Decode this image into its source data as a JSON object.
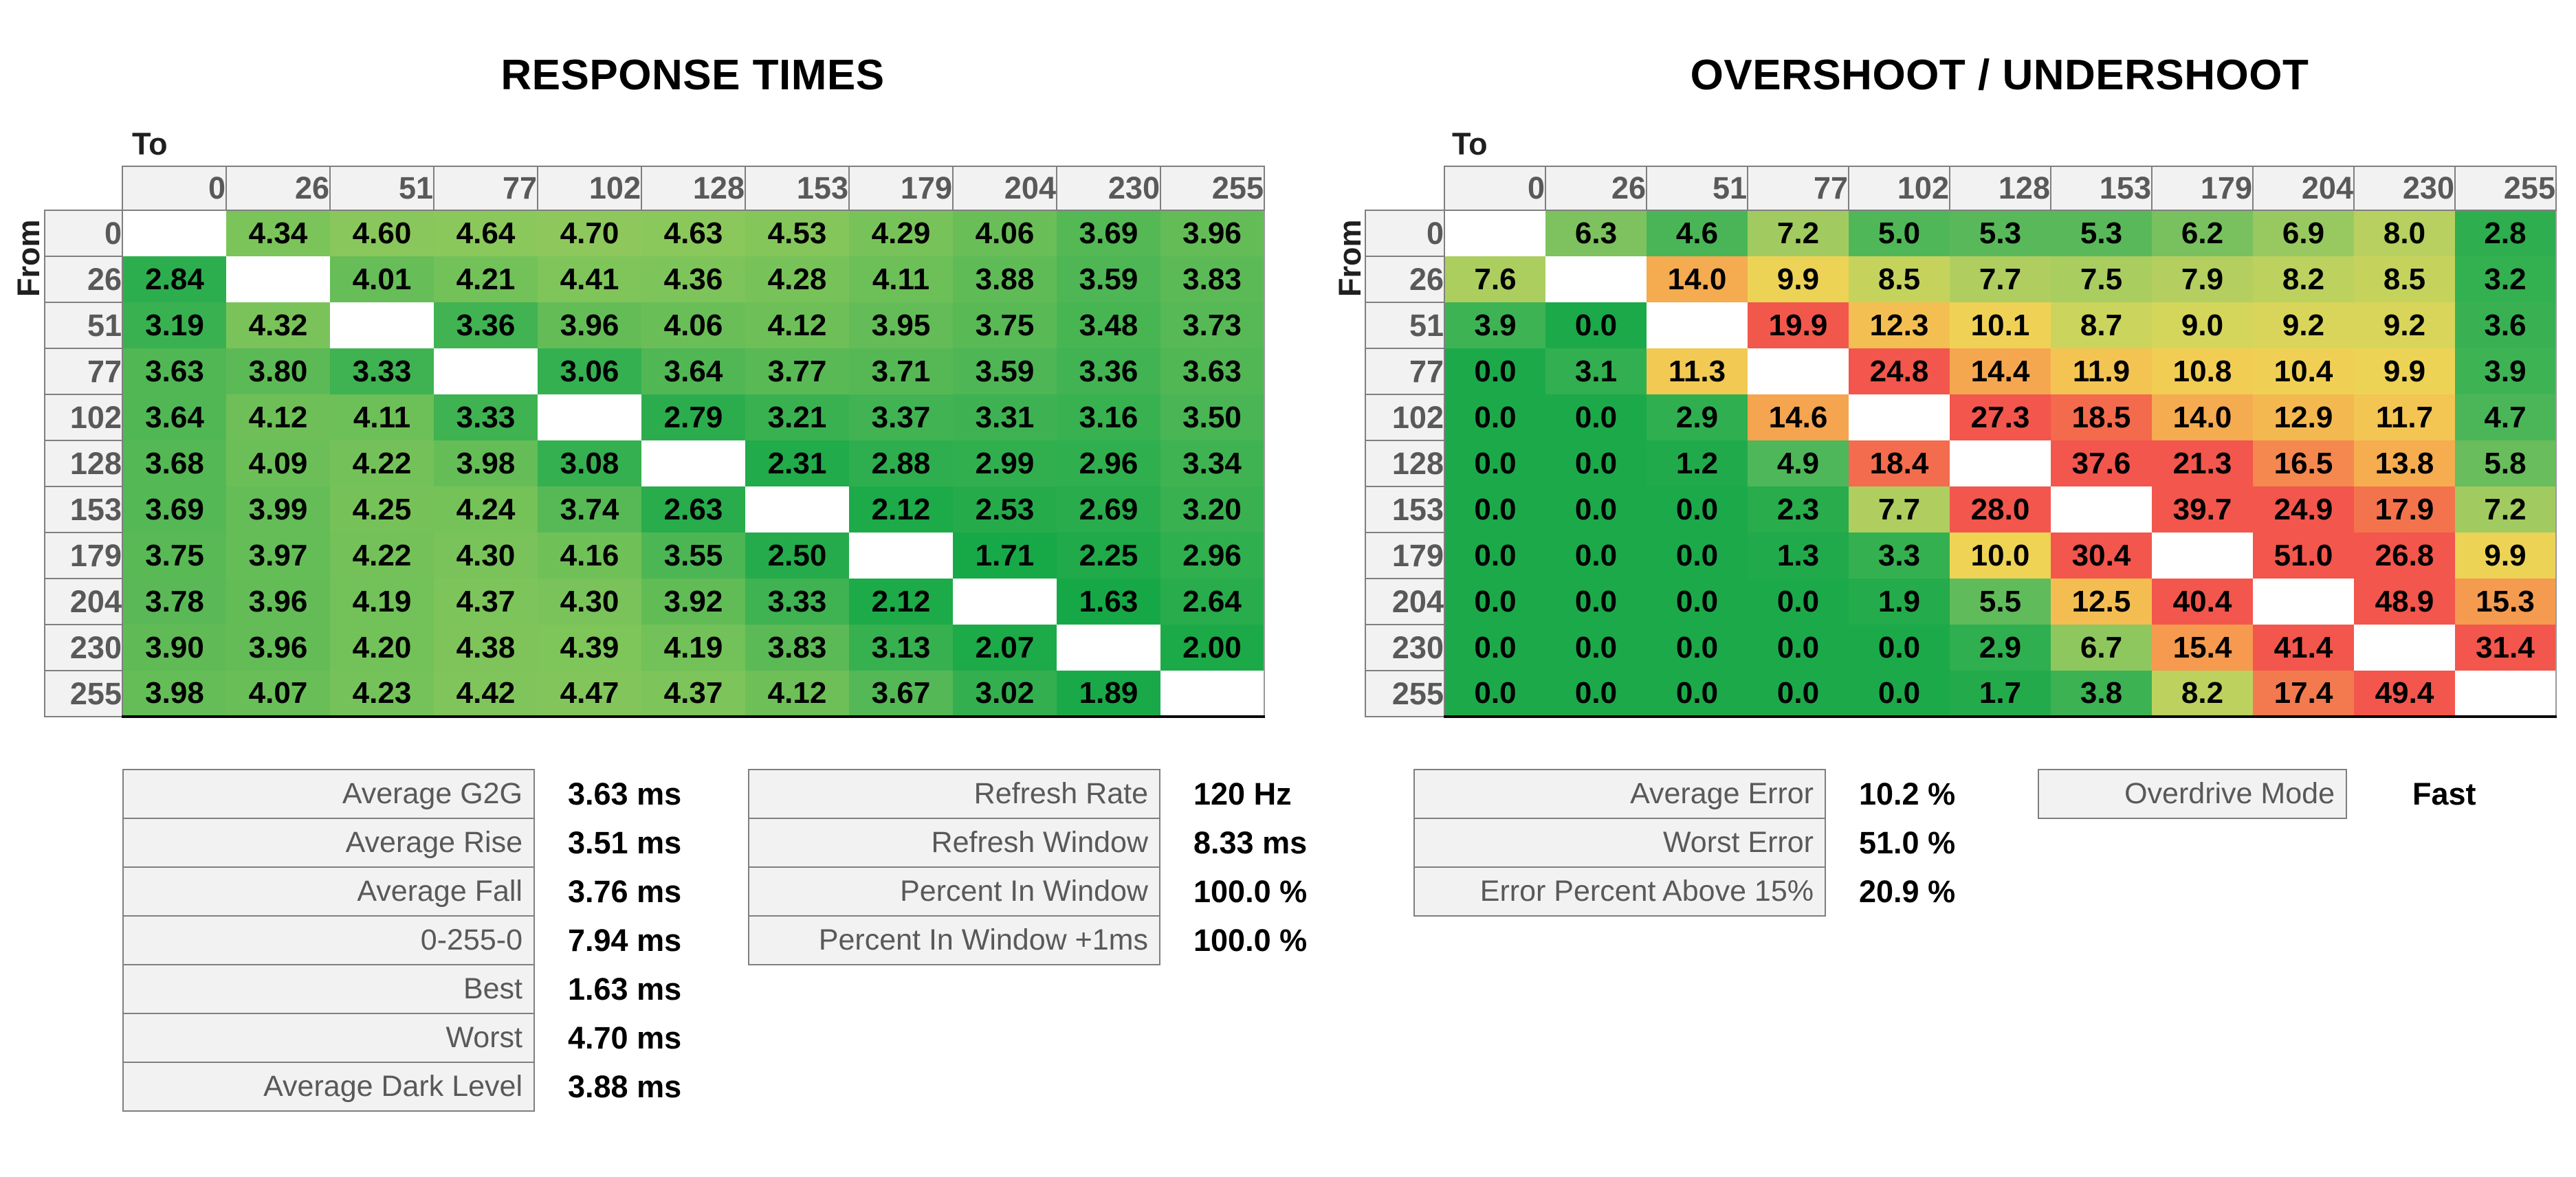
{
  "axes": {
    "to": "To",
    "from": "From"
  },
  "chart_data": [
    {
      "id": "response",
      "type": "heatmap",
      "title": "RESPONSE TIMES",
      "x_axis": "To",
      "y_axis": "From",
      "x": [
        0,
        26,
        51,
        77,
        102,
        128,
        153,
        179,
        204,
        230,
        255
      ],
      "y": [
        0,
        26,
        51,
        77,
        102,
        128,
        153,
        179,
        204,
        230,
        255
      ],
      "unit": "ms",
      "decimals": 2,
      "legend": "off",
      "grid": "off",
      "matrix": [
        [
          null,
          4.34,
          4.6,
          4.64,
          4.7,
          4.63,
          4.53,
          4.29,
          4.06,
          3.69,
          3.96
        ],
        [
          2.84,
          null,
          4.01,
          4.21,
          4.41,
          4.36,
          4.28,
          4.11,
          3.88,
          3.59,
          3.83
        ],
        [
          3.19,
          4.32,
          null,
          3.36,
          3.96,
          4.06,
          4.12,
          3.95,
          3.75,
          3.48,
          3.73
        ],
        [
          3.63,
          3.8,
          3.33,
          null,
          3.06,
          3.64,
          3.77,
          3.71,
          3.59,
          3.36,
          3.63
        ],
        [
          3.64,
          4.12,
          4.11,
          3.33,
          null,
          2.79,
          3.21,
          3.37,
          3.31,
          3.16,
          3.5
        ],
        [
          3.68,
          4.09,
          4.22,
          3.98,
          3.08,
          null,
          2.31,
          2.88,
          2.99,
          2.96,
          3.34
        ],
        [
          3.69,
          3.99,
          4.25,
          4.24,
          3.74,
          2.63,
          null,
          2.12,
          2.53,
          2.69,
          3.2
        ],
        [
          3.75,
          3.97,
          4.22,
          4.3,
          4.16,
          3.55,
          2.5,
          null,
          1.71,
          2.25,
          2.96
        ],
        [
          3.78,
          3.96,
          4.19,
          4.37,
          4.3,
          3.92,
          3.33,
          2.12,
          null,
          1.63,
          2.64
        ],
        [
          3.9,
          3.96,
          4.2,
          4.38,
          4.39,
          4.19,
          3.83,
          3.13,
          2.07,
          null,
          2.0
        ],
        [
          3.98,
          4.07,
          4.23,
          4.42,
          4.47,
          4.37,
          4.12,
          3.67,
          3.02,
          1.89,
          null
        ]
      ]
    },
    {
      "id": "overshoot",
      "type": "heatmap",
      "title": "OVERSHOOT / UNDERSHOOT",
      "x_axis": "To",
      "y_axis": "From",
      "x": [
        0,
        26,
        51,
        77,
        102,
        128,
        153,
        179,
        204,
        230,
        255
      ],
      "y": [
        0,
        26,
        51,
        77,
        102,
        128,
        153,
        179,
        204,
        230,
        255
      ],
      "unit": "%",
      "decimals": 1,
      "legend": "off",
      "grid": "off",
      "matrix": [
        [
          null,
          6.3,
          4.6,
          7.2,
          5.0,
          5.3,
          5.3,
          6.2,
          6.9,
          8.0,
          2.8
        ],
        [
          7.6,
          null,
          14.0,
          9.9,
          8.5,
          7.7,
          7.5,
          7.9,
          8.2,
          8.5,
          3.2
        ],
        [
          3.9,
          0.0,
          null,
          19.9,
          12.3,
          10.1,
          8.7,
          9.0,
          9.2,
          9.2,
          3.6
        ],
        [
          0.0,
          3.1,
          11.3,
          null,
          24.8,
          14.4,
          11.9,
          10.8,
          10.4,
          9.9,
          3.9
        ],
        [
          0.0,
          0.0,
          2.9,
          14.6,
          null,
          27.3,
          18.5,
          14.0,
          12.9,
          11.7,
          4.7
        ],
        [
          0.0,
          0.0,
          1.2,
          4.9,
          18.4,
          null,
          37.6,
          21.3,
          16.5,
          13.8,
          5.8
        ],
        [
          0.0,
          0.0,
          0.0,
          2.3,
          7.7,
          28.0,
          null,
          39.7,
          24.9,
          17.9,
          7.2
        ],
        [
          0.0,
          0.0,
          0.0,
          1.3,
          3.3,
          10.0,
          30.4,
          null,
          51.0,
          26.8,
          9.9
        ],
        [
          0.0,
          0.0,
          0.0,
          0.0,
          1.9,
          5.5,
          12.5,
          40.4,
          null,
          48.9,
          15.3
        ],
        [
          0.0,
          0.0,
          0.0,
          0.0,
          0.0,
          2.9,
          6.7,
          15.4,
          41.4,
          null,
          31.4
        ],
        [
          0.0,
          0.0,
          0.0,
          0.0,
          0.0,
          1.7,
          3.8,
          8.2,
          17.4,
          49.4,
          null
        ]
      ]
    }
  ],
  "color_scales": {
    "diagonal_color": "#FFFFFF",
    "header_bg": "#F2F2F2",
    "header_text": "#595959",
    "border_gray": "#7F7F7F",
    "response": [
      [
        1.5,
        "#14A847"
      ],
      [
        2.1,
        "#1DAA49"
      ],
      [
        2.5,
        "#25AB4B"
      ],
      [
        2.9,
        "#2EAE4E"
      ],
      [
        3.3,
        "#3DB252"
      ],
      [
        3.7,
        "#55B855"
      ],
      [
        4.0,
        "#66BD57"
      ],
      [
        4.35,
        "#7CC45A"
      ],
      [
        4.75,
        "#90C95D"
      ]
    ],
    "overshoot": [
      [
        0,
        "#1CA94A"
      ],
      [
        2,
        "#24AB4B"
      ],
      [
        3,
        "#30AF4F"
      ],
      [
        4,
        "#3FB354"
      ],
      [
        5,
        "#50B759"
      ],
      [
        6,
        "#6FBF5D"
      ],
      [
        7,
        "#9CCA60"
      ],
      [
        8,
        "#B7D05F"
      ],
      [
        9,
        "#D3D65B"
      ],
      [
        10,
        "#EFD355"
      ],
      [
        12,
        "#F4C352"
      ],
      [
        14,
        "#F5AB50"
      ],
      [
        15,
        "#F5A04F"
      ],
      [
        16.5,
        "#F4884F"
      ],
      [
        18,
        "#F3714D"
      ],
      [
        20,
        "#F2564C"
      ],
      [
        999,
        "#F2544C"
      ]
    ]
  },
  "stats_groups": [
    {
      "id": "response-summary",
      "rows": [
        {
          "label": "Average G2G",
          "value": "3.63 ms"
        },
        {
          "label": "Average Rise",
          "value": "3.51 ms"
        },
        {
          "label": "Average Fall",
          "value": "3.76 ms"
        },
        {
          "label": "0-255-0",
          "value": "7.94 ms"
        },
        {
          "label": "Best",
          "value": "1.63 ms"
        },
        {
          "label": "Worst",
          "value": "4.70 ms"
        },
        {
          "label": "Average Dark Level",
          "value": "3.88 ms"
        }
      ]
    },
    {
      "id": "refresh-summary",
      "rows": [
        {
          "label": "Refresh Rate",
          "value": "120 Hz"
        },
        {
          "label": "Refresh Window",
          "value": "8.33 ms"
        },
        {
          "label": "Percent In Window",
          "value": "100.0 %"
        },
        {
          "label": "Percent In Window +1ms",
          "value": "100.0 %"
        }
      ]
    },
    {
      "id": "error-summary",
      "rows": [
        {
          "label": "Average Error",
          "value": "10.2 %"
        },
        {
          "label": "Worst Error",
          "value": "51.0 %"
        },
        {
          "label": "Error Percent Above 15%",
          "value": "20.9 %"
        }
      ]
    }
  ],
  "overdrive": {
    "label": "Overdrive Mode",
    "value": "Fast"
  }
}
